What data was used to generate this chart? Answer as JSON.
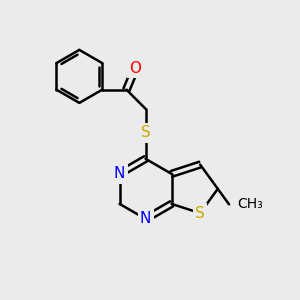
{
  "bg_color": "#ebebeb",
  "bond_color": "#000000",
  "bond_width": 1.8,
  "atom_colors": {
    "O": "#ff0000",
    "N": "#0000ff",
    "S": "#ccaa00",
    "C": "#000000"
  },
  "font_size": 11,
  "fig_size": [
    3.0,
    3.0
  ],
  "dpi": 100,
  "xlim": [
    0,
    10
  ],
  "ylim": [
    0,
    10
  ]
}
